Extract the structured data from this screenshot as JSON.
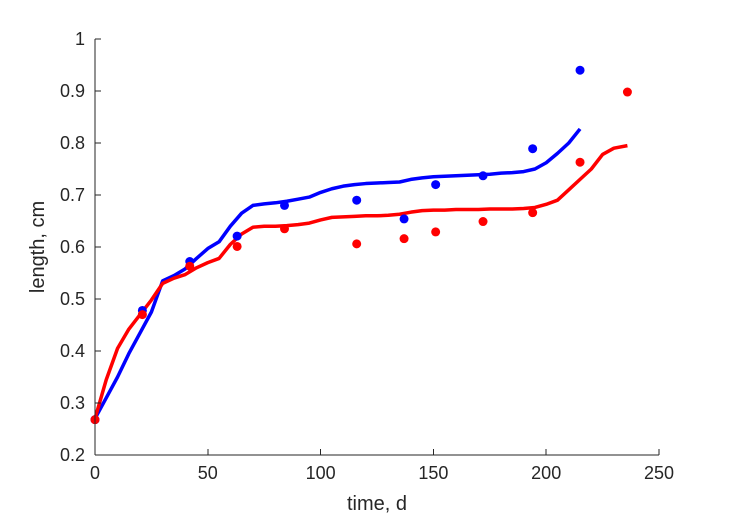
{
  "chart_data": {
    "type": "line",
    "title": "",
    "xlabel": "time, d",
    "ylabel": "length, cm",
    "xlim": [
      0,
      250
    ],
    "ylim": [
      0.2,
      1.0
    ],
    "xticks": [
      "0",
      "50",
      "100",
      "150",
      "200",
      "250"
    ],
    "yticks": [
      "0.2",
      "0.3",
      "0.4",
      "0.5",
      "0.6",
      "0.7",
      "0.8",
      "0.9",
      "1"
    ],
    "grid": false,
    "legend": "none",
    "series": [
      {
        "kind": "scatter",
        "color": "#0000ff",
        "x": [
          0,
          21,
          42,
          63,
          84,
          116,
          137,
          151,
          172,
          194,
          215
        ],
        "y": [
          0.268,
          0.478,
          0.572,
          0.621,
          0.68,
          0.69,
          0.654,
          0.72,
          0.737,
          0.789,
          0.94
        ]
      },
      {
        "kind": "scatter",
        "color": "#ff0000",
        "x": [
          0,
          21,
          42,
          63,
          84,
          116,
          137,
          151,
          172,
          194,
          215,
          236
        ],
        "y": [
          0.268,
          0.47,
          0.563,
          0.601,
          0.635,
          0.606,
          0.616,
          0.629,
          0.649,
          0.666,
          0.763,
          0.898
        ]
      },
      {
        "kind": "line",
        "color": "#0000ff",
        "x": [
          0,
          5,
          10,
          15,
          20,
          25,
          30,
          35,
          40,
          45,
          50,
          55,
          60,
          65,
          70,
          75,
          80,
          85,
          90,
          95,
          100,
          105,
          110,
          115,
          120,
          125,
          130,
          135,
          140,
          145,
          150,
          155,
          160,
          165,
          170,
          175,
          180,
          185,
          190,
          195,
          200,
          205,
          210,
          215
        ],
        "y": [
          0.27,
          0.31,
          0.35,
          0.395,
          0.435,
          0.475,
          0.535,
          0.545,
          0.558,
          0.578,
          0.597,
          0.61,
          0.64,
          0.665,
          0.68,
          0.683,
          0.685,
          0.688,
          0.692,
          0.696,
          0.705,
          0.712,
          0.717,
          0.72,
          0.722,
          0.723,
          0.724,
          0.725,
          0.73,
          0.733,
          0.735,
          0.736,
          0.737,
          0.738,
          0.739,
          0.74,
          0.742,
          0.743,
          0.745,
          0.75,
          0.762,
          0.78,
          0.8,
          0.827
        ]
      },
      {
        "kind": "line",
        "color": "#ff0000",
        "x": [
          0,
          5,
          10,
          15,
          20,
          25,
          30,
          35,
          40,
          45,
          50,
          55,
          60,
          65,
          70,
          75,
          80,
          85,
          90,
          95,
          100,
          105,
          110,
          115,
          120,
          125,
          130,
          135,
          140,
          145,
          150,
          155,
          160,
          165,
          170,
          175,
          180,
          185,
          190,
          195,
          200,
          205,
          210,
          215,
          220,
          225,
          230,
          236
        ],
        "y": [
          0.27,
          0.345,
          0.405,
          0.442,
          0.47,
          0.498,
          0.53,
          0.54,
          0.547,
          0.56,
          0.57,
          0.578,
          0.605,
          0.625,
          0.638,
          0.64,
          0.64,
          0.641,
          0.643,
          0.646,
          0.652,
          0.657,
          0.658,
          0.659,
          0.66,
          0.66,
          0.661,
          0.663,
          0.667,
          0.67,
          0.671,
          0.671,
          0.672,
          0.672,
          0.672,
          0.673,
          0.673,
          0.673,
          0.674,
          0.676,
          0.682,
          0.69,
          0.71,
          0.73,
          0.75,
          0.778,
          0.79,
          0.795
        ]
      }
    ]
  }
}
